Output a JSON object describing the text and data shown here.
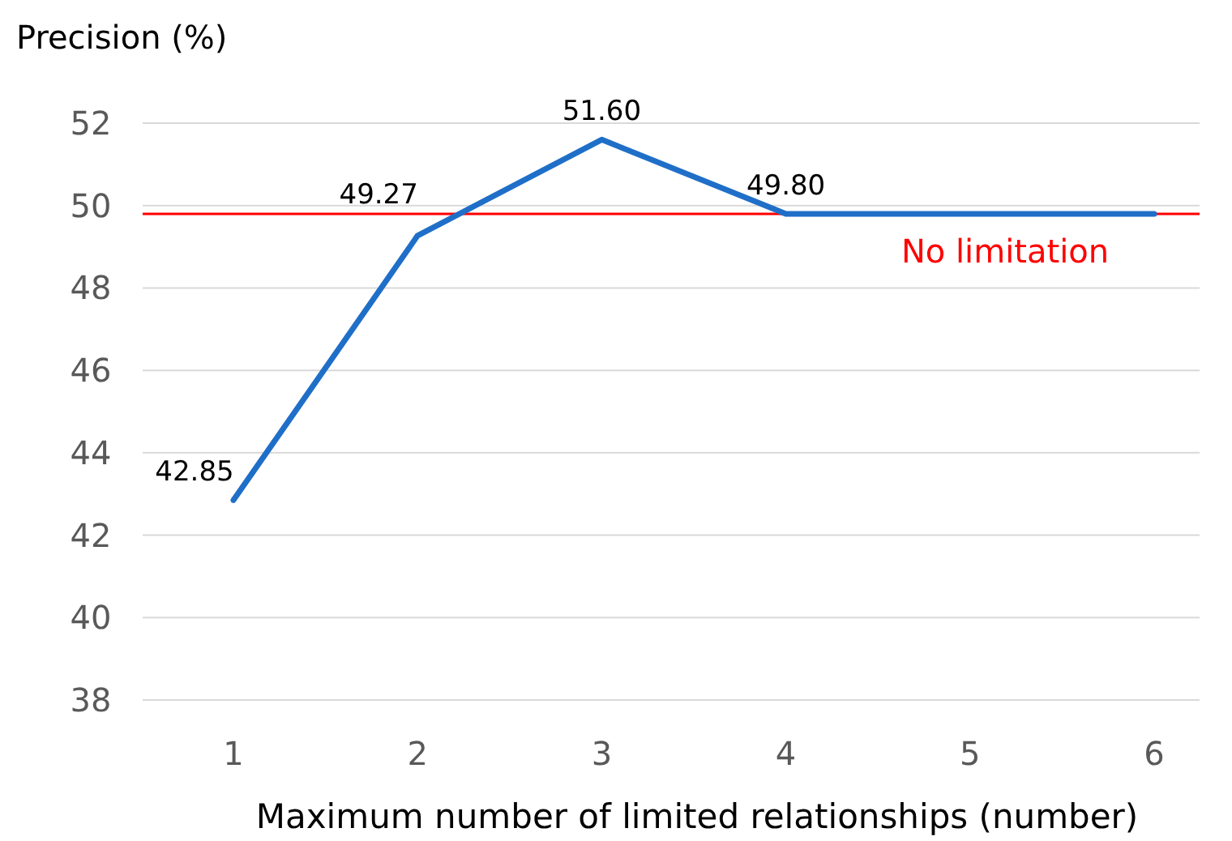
{
  "chart_data": {
    "type": "line",
    "xlabel": "Maximum number of limited relationships (number)",
    "ylabel": "Precision (%)",
    "categories": [
      "1",
      "2",
      "3",
      "4",
      "5",
      "6"
    ],
    "series": [
      {
        "color": "#1f6fc8",
        "values": [
          42.85,
          49.27,
          51.6,
          49.8,
          49.8,
          49.8
        ],
        "value_labels": [
          "42.85",
          "49.27",
          "51.60",
          "49.80",
          null,
          null
        ]
      }
    ],
    "ylim": [
      38,
      52
    ],
    "yticks": [
      38,
      40,
      42,
      44,
      46,
      48,
      50,
      52
    ],
    "grid": "y",
    "marker": "none",
    "line_style": "solid",
    "ref_lines": [
      {
        "axis": "y",
        "value": 49.8,
        "label": "No limitation",
        "color": "#ff0000"
      }
    ]
  }
}
